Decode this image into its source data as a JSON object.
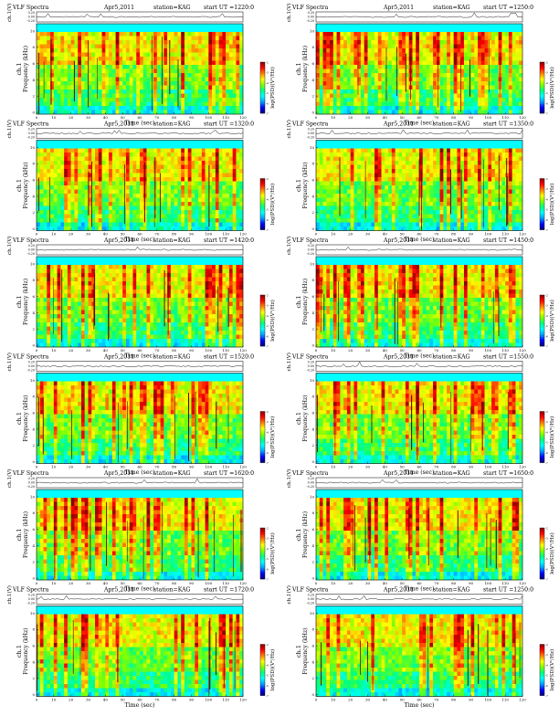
{
  "header": {
    "kind": "VLF Spectra",
    "date": "Apr5,2011",
    "station": "station=KAG",
    "start_prefix": "start UT =",
    "start_suffix": ":0"
  },
  "axes": {
    "voltage_label": "ch.1(V)",
    "voltage_ticks": [
      "0.20",
      "0.00",
      "-0.20"
    ],
    "freq_label": "Frequency (kHz)",
    "channel_label": "ch.1",
    "freq_ticks": [
      "10",
      "8",
      "6",
      "4",
      "2",
      "0"
    ],
    "time_label": "Time (sec)",
    "time_ticks": [
      "0",
      "10",
      "20",
      "30",
      "40",
      "50",
      "60",
      "70",
      "80",
      "90",
      "100",
      "110",
      "120"
    ],
    "colorbar_label": "log(PSD)(V²/Hz)",
    "colorbar_ticks": [
      "-2",
      "-3",
      "-4",
      "-5",
      "-6",
      "-7"
    ]
  },
  "colors": {
    "colormap": [
      "#00007a",
      "#0000ff",
      "#00a0ff",
      "#00ffff",
      "#00ff80",
      "#80ff00",
      "#ffff00",
      "#ff8000",
      "#ff0000",
      "#8b0000"
    ]
  },
  "chart_data": [
    {
      "type": "heatmap",
      "panel": "0",
      "start_ut": "1220",
      "x_range": [
        0,
        120
      ],
      "y_range": [
        0,
        10
      ],
      "xlabel": "Time (sec)",
      "ylabel": "Frequency (kHz)",
      "colorbar": "log(PSD)(V²/Hz)",
      "z_range": [
        -7,
        -2
      ]
    },
    {
      "type": "heatmap",
      "panel": "1",
      "start_ut": "1250",
      "x_range": [
        0,
        120
      ],
      "y_range": [
        0,
        10
      ],
      "xlabel": "Time (sec)",
      "ylabel": "Frequency (kHz)",
      "colorbar": "log(PSD)(V²/Hz)",
      "z_range": [
        -7,
        -2
      ]
    },
    {
      "type": "heatmap",
      "panel": "2",
      "start_ut": "1320",
      "x_range": [
        0,
        120
      ],
      "y_range": [
        0,
        10
      ],
      "xlabel": "Time (sec)",
      "ylabel": "Frequency (kHz)",
      "colorbar": "log(PSD)(V²/Hz)",
      "z_range": [
        -7,
        -2
      ]
    },
    {
      "type": "heatmap",
      "panel": "3",
      "start_ut": "1350",
      "x_range": [
        0,
        120
      ],
      "y_range": [
        0,
        10
      ],
      "xlabel": "Time (sec)",
      "ylabel": "Frequency (kHz)",
      "colorbar": "log(PSD)(V²/Hz)",
      "z_range": [
        -7,
        -2
      ]
    },
    {
      "type": "heatmap",
      "panel": "4",
      "start_ut": "1420",
      "x_range": [
        0,
        120
      ],
      "y_range": [
        0,
        10
      ],
      "xlabel": "Time (sec)",
      "ylabel": "Frequency (kHz)",
      "colorbar": "log(PSD)(V²/Hz)",
      "z_range": [
        -7,
        -2
      ]
    },
    {
      "type": "heatmap",
      "panel": "5",
      "start_ut": "1450",
      "x_range": [
        0,
        120
      ],
      "y_range": [
        0,
        10
      ],
      "xlabel": "Time (sec)",
      "ylabel": "Frequency (kHz)",
      "colorbar": "log(PSD)(V²/Hz)",
      "z_range": [
        -7,
        -2
      ]
    },
    {
      "type": "heatmap",
      "panel": "6",
      "start_ut": "1520",
      "x_range": [
        0,
        120
      ],
      "y_range": [
        0,
        10
      ],
      "xlabel": "Time (sec)",
      "ylabel": "Frequency (kHz)",
      "colorbar": "log(PSD)(V²/Hz)",
      "z_range": [
        -7,
        -2
      ]
    },
    {
      "type": "heatmap",
      "panel": "7",
      "start_ut": "1550",
      "x_range": [
        0,
        120
      ],
      "y_range": [
        0,
        10
      ],
      "xlabel": "Time (sec)",
      "ylabel": "Frequency (kHz)",
      "colorbar": "log(PSD)(V²/Hz)",
      "z_range": [
        -7,
        -2
      ]
    },
    {
      "type": "heatmap",
      "panel": "8",
      "start_ut": "1620",
      "x_range": [
        0,
        120
      ],
      "y_range": [
        0,
        10
      ],
      "xlabel": "Time (sec)",
      "ylabel": "Frequency (kHz)",
      "colorbar": "log(PSD)(V²/Hz)",
      "z_range": [
        -7,
        -2
      ]
    },
    {
      "type": "heatmap",
      "panel": "9",
      "start_ut": "1650",
      "x_range": [
        0,
        120
      ],
      "y_range": [
        0,
        10
      ],
      "xlabel": "Time (sec)",
      "ylabel": "Frequency (kHz)",
      "colorbar": "log(PSD)(V²/Hz)",
      "z_range": [
        -7,
        -2
      ]
    },
    {
      "type": "heatmap",
      "panel": "10",
      "start_ut": "1720",
      "x_range": [
        0,
        120
      ],
      "y_range": [
        0,
        10
      ],
      "xlabel": "Time (sec)",
      "ylabel": "Frequency (kHz)",
      "colorbar": "log(PSD)(V²/Hz)",
      "z_range": [
        -7,
        -2
      ]
    },
    {
      "type": "heatmap",
      "panel": "11",
      "start_ut": "1250",
      "x_range": [
        0,
        120
      ],
      "y_range": [
        0,
        10
      ],
      "xlabel": "Time (sec)",
      "ylabel": "Frequency (kHz)",
      "colorbar": "log(PSD)(V²/Hz)",
      "z_range": [
        -7,
        -2
      ]
    }
  ]
}
